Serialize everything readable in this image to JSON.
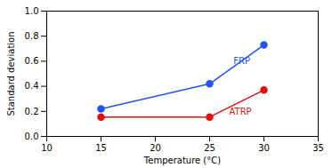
{
  "chart_data": {
    "type": "line",
    "xlabel": "Temperature (°C)",
    "ylabel": "Standard deviation",
    "series": [
      {
        "name": "FRP",
        "color": "#2255ee",
        "marker": "o",
        "x": [
          15,
          25,
          30
        ],
        "values": [
          0.22,
          0.42,
          0.73
        ]
      },
      {
        "name": "ATRP",
        "color": "#dd1111",
        "marker": "o",
        "x": [
          15,
          25,
          30
        ],
        "values": [
          0.155,
          0.155,
          0.37
        ]
      }
    ],
    "annotations": [
      {
        "text": "FRP",
        "x": 27.2,
        "y": 0.6,
        "color": "#2255ee"
      },
      {
        "text": "ATRP",
        "x": 26.8,
        "y": 0.195,
        "color": "#dd1111"
      }
    ],
    "xlim": [
      10,
      35
    ],
    "ylim": [
      0.0,
      1.0
    ],
    "xticks": [
      10,
      15,
      20,
      25,
      30,
      35
    ],
    "yticks": [
      {
        "value": 0.0,
        "label": "0.0"
      },
      0.2,
      0.4,
      0.6,
      0.8,
      {
        "value": 1.0,
        "label": "1.0"
      }
    ],
    "grid": false
  }
}
